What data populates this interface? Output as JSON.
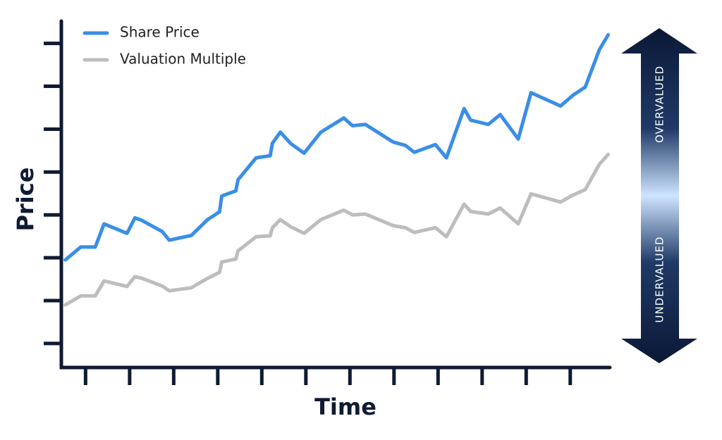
{
  "chart_data": {
    "type": "line",
    "xlabel": "Time",
    "ylabel": "Price",
    "x": [
      0.54,
      0.89,
      1.22,
      1.42,
      1.94,
      2.12,
      2.28,
      2.74,
      2.9,
      3.4,
      3.77,
      4.04,
      4.09,
      4.41,
      4.46,
      4.87,
      5.19,
      5.24,
      5.42,
      5.66,
      5.96,
      6.34,
      6.86,
      7.06,
      7.35,
      7.98,
      8.26,
      8.46,
      8.94,
      9.19,
      9.59,
      9.74,
      10.14,
      10.41,
      10.82,
      11.11,
      11.78,
      12.06,
      12.34,
      12.66,
      12.86
    ],
    "series": [
      {
        "name": "Share Price",
        "color": "#3a8ee6",
        "values": [
          2.95,
          3.25,
          3.25,
          3.79,
          3.57,
          3.93,
          3.87,
          3.61,
          3.41,
          3.52,
          3.89,
          4.07,
          4.44,
          4.56,
          4.82,
          5.33,
          5.38,
          5.67,
          5.93,
          5.66,
          5.44,
          5.93,
          6.26,
          6.08,
          6.11,
          5.7,
          5.62,
          5.46,
          5.64,
          5.33,
          6.48,
          6.21,
          6.11,
          6.34,
          5.77,
          6.85,
          6.54,
          6.79,
          6.98,
          7.85,
          8.2
        ]
      },
      {
        "name": "Valuation Multiple",
        "color": "#bdbdbd",
        "values": [
          1.9,
          2.11,
          2.11,
          2.46,
          2.33,
          2.56,
          2.52,
          2.34,
          2.23,
          2.3,
          2.52,
          2.66,
          2.9,
          2.97,
          3.16,
          3.49,
          3.51,
          3.7,
          3.89,
          3.72,
          3.57,
          3.89,
          4.11,
          4.0,
          4.02,
          3.75,
          3.7,
          3.59,
          3.7,
          3.49,
          4.25,
          4.08,
          4.02,
          4.16,
          3.79,
          4.49,
          4.3,
          4.46,
          4.59,
          5.18,
          5.41
        ]
      }
    ],
    "xlim": [
      0.45,
      12.9
    ],
    "ylim": [
      0.44,
      8.52
    ],
    "xticks": [
      1,
      2,
      3,
      4,
      5,
      6,
      7,
      8,
      9,
      10,
      11,
      12
    ],
    "yticks": [
      1,
      2,
      3,
      4,
      5,
      6,
      7,
      8
    ],
    "legend": "top-left",
    "annotations": [
      "OVERVALUED",
      "UNDERVALUED"
    ]
  }
}
